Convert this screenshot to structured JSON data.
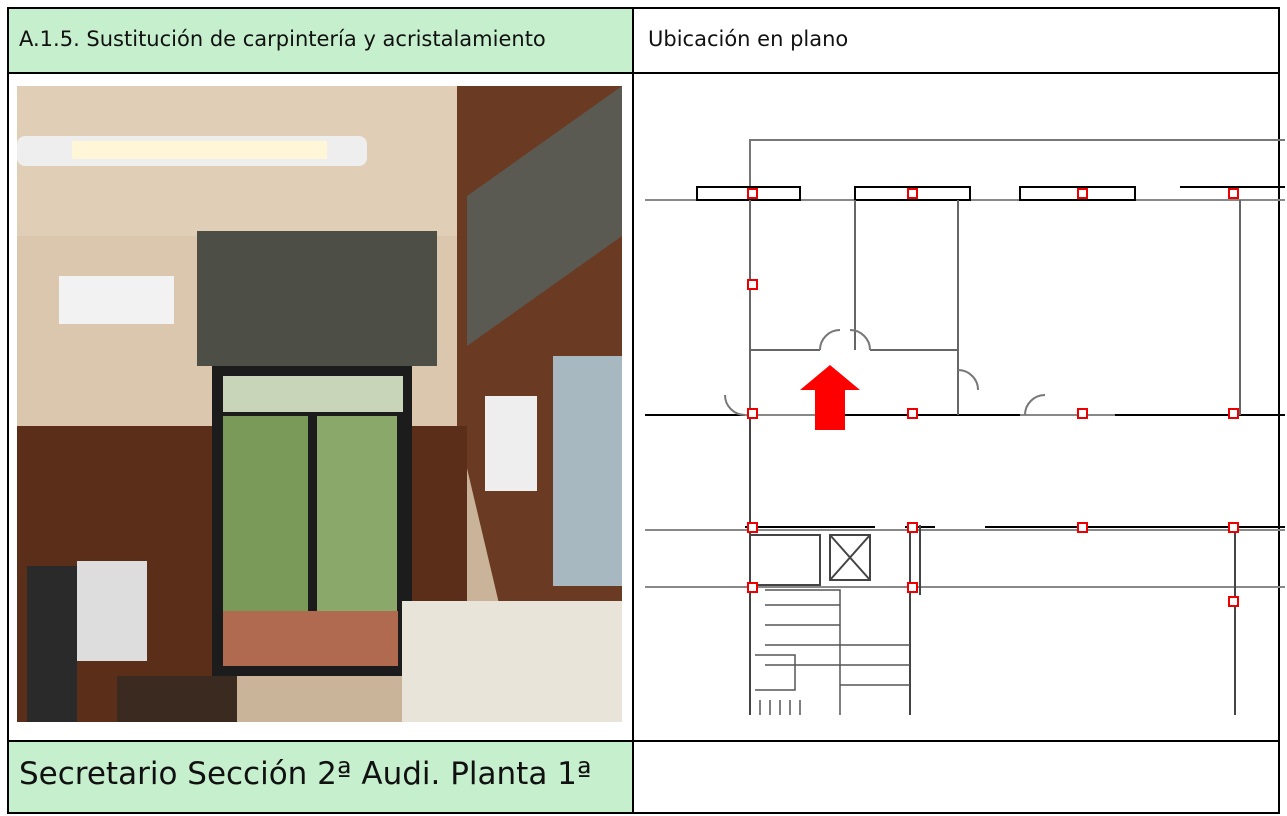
{
  "header": {
    "title": "A.1.5. Sustitución de carpintería y acristalamiento",
    "location_label": "Ubicación en plano"
  },
  "caption": {
    "text": "Secretario Sección 2ª Audi. Planta 1ª"
  }
}
